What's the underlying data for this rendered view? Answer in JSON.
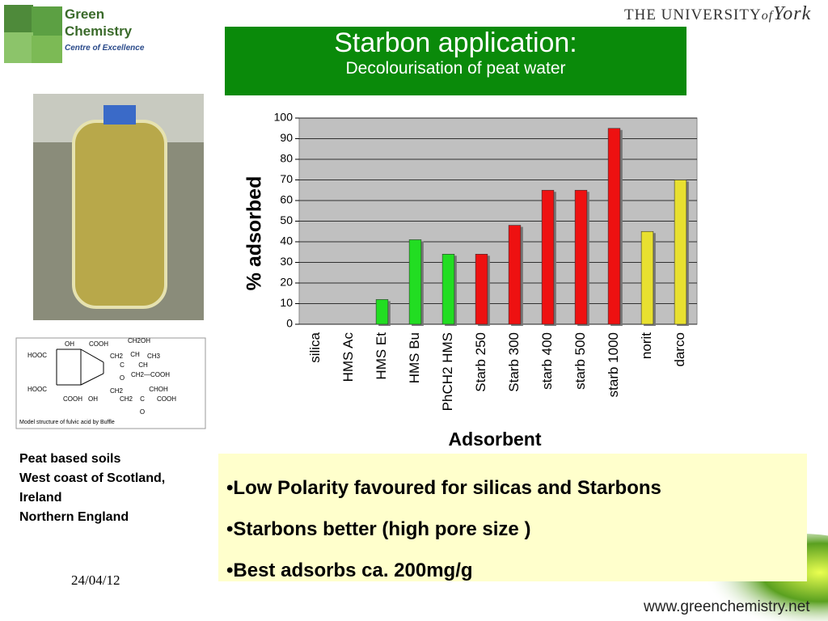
{
  "logo": {
    "line1": "Green",
    "line2": "Chemistry",
    "line3": "Centre of Excellence"
  },
  "university": {
    "prefix": "THE UNIVERSITY",
    "of": "of",
    "name": "York"
  },
  "header": {
    "title": "Starbon application:",
    "subtitle": "Decolourisation of peat water"
  },
  "molecule": {
    "labels": [
      "OH",
      "COOH",
      "CH2OH",
      "HOOC",
      "CH2",
      "CH",
      "CH3",
      "C",
      "O",
      "CH",
      "CH2—COOH",
      "HOOC",
      "CH2",
      "CHOH",
      "COOH",
      "OH",
      "CH2",
      "C",
      "COOH",
      "O"
    ],
    "caption": "Model structure of fulvic acid by Buffle"
  },
  "locations": [
    "Peat based soils",
    "West coast of Scotland,",
    "Ireland",
    "Northern England"
  ],
  "bullets": [
    "•Low Polarity favoured for silicas and Starbons",
    "•Starbons better (high pore size )",
    "•Best adsorbs ca. 200mg/g"
  ],
  "date": "24/04/12",
  "url": "www.greenchemistry.net",
  "chart_data": {
    "type": "bar",
    "categories": [
      "silica",
      "HMS Ac",
      "HMS Et",
      "HMS Bu",
      "PhCH2 HMS",
      "Starb 250",
      "Starb 300",
      "starb 400",
      "starb 500",
      "starb 1000",
      "norit",
      "darco"
    ],
    "values": [
      0,
      0,
      12,
      41,
      34,
      34,
      48,
      65,
      65,
      95,
      45,
      70
    ],
    "colors": [
      "#22dd22",
      "#22dd22",
      "#22dd22",
      "#22dd22",
      "#22dd22",
      "#ee1111",
      "#ee1111",
      "#ee1111",
      "#ee1111",
      "#ee1111",
      "#e8e030",
      "#e8e030"
    ],
    "x_label": "Adsorbent",
    "y_label": "% adsorbed",
    "ylim": [
      0,
      100
    ],
    "yticks": [
      0,
      10,
      20,
      30,
      40,
      50,
      60,
      70,
      80,
      90,
      100
    ],
    "grid": true
  }
}
